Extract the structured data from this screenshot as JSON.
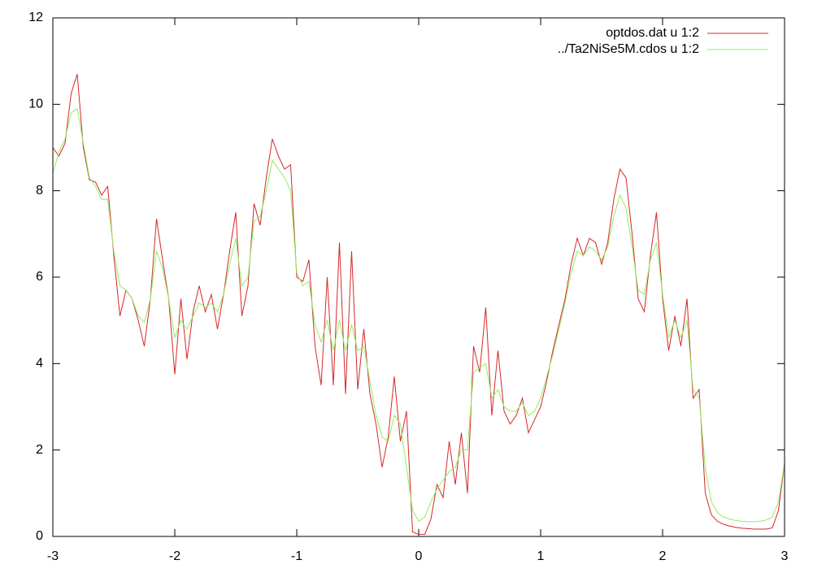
{
  "chart_data": {
    "type": "line",
    "x": [
      -3,
      -2.95,
      -2.9,
      -2.85,
      -2.8,
      -2.75,
      -2.7,
      -2.65,
      -2.6,
      -2.55,
      -2.5,
      -2.45,
      -2.4,
      -2.35,
      -2.3,
      -2.25,
      -2.2,
      -2.15,
      -2.1,
      -2.05,
      -2,
      -1.95,
      -1.9,
      -1.85,
      -1.8,
      -1.75,
      -1.7,
      -1.65,
      -1.6,
      -1.55,
      -1.5,
      -1.45,
      -1.4,
      -1.35,
      -1.3,
      -1.25,
      -1.2,
      -1.15,
      -1.1,
      -1.05,
      -1,
      -0.95,
      -0.9,
      -0.85,
      -0.8,
      -0.75,
      -0.7,
      -0.65,
      -0.6,
      -0.55,
      -0.5,
      -0.45,
      -0.4,
      -0.35,
      -0.3,
      -0.25,
      -0.2,
      -0.15,
      -0.1,
      -0.05,
      0,
      0.05,
      0.1,
      0.15,
      0.2,
      0.25,
      0.3,
      0.35,
      0.4,
      0.45,
      0.5,
      0.55,
      0.6,
      0.65,
      0.7,
      0.75,
      0.8,
      0.85,
      0.9,
      0.95,
      1,
      1.05,
      1.1,
      1.15,
      1.2,
      1.25,
      1.3,
      1.35,
      1.4,
      1.45,
      1.5,
      1.55,
      1.6,
      1.65,
      1.7,
      1.75,
      1.8,
      1.85,
      1.9,
      1.95,
      2,
      2.05,
      2.1,
      2.15,
      2.2,
      2.25,
      2.3,
      2.35,
      2.4,
      2.45,
      2.5,
      2.55,
      2.6,
      2.65,
      2.7,
      2.75,
      2.8,
      2.85,
      2.9,
      2.95,
      3
    ],
    "series": [
      {
        "name": "optdos.dat u 1:2",
        "color": "#d62728",
        "values": [
          9.0,
          8.8,
          9.1,
          10.25,
          10.7,
          9.0,
          8.25,
          8.2,
          7.9,
          8.1,
          6.5,
          5.1,
          5.7,
          5.5,
          5.0,
          4.4,
          5.5,
          7.35,
          6.4,
          5.5,
          3.75,
          5.5,
          4.1,
          5.2,
          5.8,
          5.2,
          5.6,
          4.8,
          5.6,
          6.6,
          7.5,
          5.1,
          5.8,
          7.7,
          7.2,
          8.3,
          9.2,
          8.8,
          8.5,
          8.6,
          6.0,
          5.9,
          6.4,
          4.4,
          3.5,
          6.0,
          3.5,
          6.8,
          3.3,
          6.6,
          3.4,
          4.8,
          3.3,
          2.6,
          1.6,
          2.3,
          3.7,
          2.2,
          2.9,
          0.1,
          0.05,
          0.05,
          0.4,
          1.2,
          0.9,
          2.2,
          1.2,
          2.4,
          1.0,
          4.4,
          3.8,
          5.3,
          2.8,
          4.3,
          2.9,
          2.6,
          2.8,
          3.2,
          2.4,
          2.7,
          3.0,
          3.6,
          4.3,
          4.9,
          5.5,
          6.3,
          6.9,
          6.5,
          6.9,
          6.8,
          6.3,
          6.8,
          7.8,
          8.5,
          8.3,
          7.0,
          5.5,
          5.2,
          6.5,
          7.5,
          5.5,
          4.3,
          5.1,
          4.4,
          5.5,
          3.2,
          3.4,
          1.0,
          0.5,
          0.35,
          0.28,
          0.24,
          0.21,
          0.19,
          0.18,
          0.17,
          0.17,
          0.17,
          0.2,
          0.6,
          1.7
        ]
      },
      {
        "name": "../Ta2NiSe5M.cdos u 1:2",
        "color": "#90ee60",
        "values": [
          8.4,
          8.9,
          9.2,
          9.8,
          9.9,
          9.1,
          8.3,
          8.1,
          7.8,
          7.8,
          6.6,
          5.8,
          5.7,
          5.5,
          5.1,
          4.95,
          5.5,
          6.6,
          6.2,
          5.5,
          4.6,
          5.0,
          4.8,
          5.1,
          5.4,
          5.3,
          5.4,
          5.2,
          5.6,
          6.3,
          6.9,
          5.8,
          6.0,
          7.3,
          7.4,
          8.0,
          8.7,
          8.5,
          8.3,
          8.0,
          6.1,
          5.8,
          5.9,
          4.9,
          4.5,
          5.0,
          4.3,
          5.0,
          4.3,
          4.9,
          4.3,
          4.4,
          3.6,
          2.8,
          2.3,
          2.2,
          2.8,
          2.6,
          1.6,
          0.6,
          0.35,
          0.45,
          0.8,
          1.1,
          1.3,
          1.5,
          1.6,
          2.0,
          2.0,
          3.8,
          3.9,
          4.0,
          3.2,
          3.4,
          3.0,
          2.9,
          2.9,
          3.1,
          2.8,
          2.9,
          3.2,
          3.7,
          4.2,
          4.8,
          5.4,
          6.1,
          6.6,
          6.5,
          6.7,
          6.6,
          6.4,
          6.7,
          7.4,
          7.9,
          7.6,
          6.7,
          5.7,
          5.6,
          6.4,
          6.8,
          5.6,
          4.6,
          5.0,
          4.6,
          5.0,
          3.4,
          3.2,
          1.6,
          0.8,
          0.55,
          0.45,
          0.4,
          0.37,
          0.35,
          0.34,
          0.34,
          0.35,
          0.38,
          0.45,
          0.8,
          1.7
        ]
      }
    ],
    "xlim": [
      -3,
      3
    ],
    "ylim": [
      0,
      12
    ],
    "xticks": [
      -3,
      -2,
      -1,
      0,
      1,
      2,
      3
    ],
    "yticks": [
      0,
      2,
      4,
      6,
      8,
      10,
      12
    ],
    "legend": "top-right",
    "grid": false
  }
}
